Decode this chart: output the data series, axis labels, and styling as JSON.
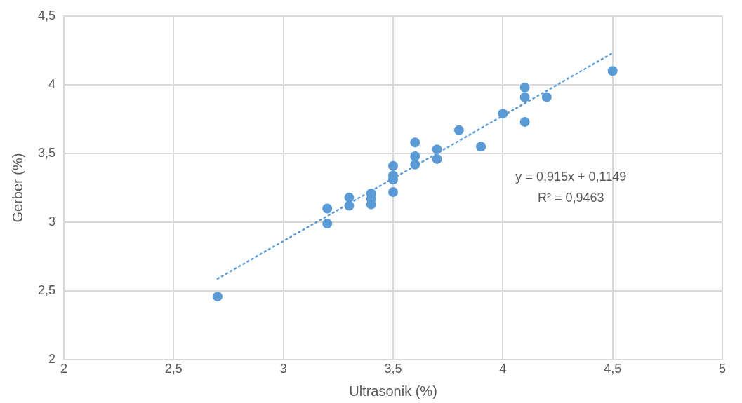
{
  "chart_data": {
    "type": "scatter",
    "xlabel": "Ultrasonik (%)",
    "ylabel": "Gerber (%)",
    "xlim": [
      2,
      5
    ],
    "xticks": [
      2,
      {
        "value": 2.5,
        "label": "2,5"
      },
      3,
      {
        "value": 3.5,
        "label": "3,5"
      },
      4,
      {
        "value": 4.5,
        "label": "4,5"
      },
      5
    ],
    "ylim": [
      2,
      4.5
    ],
    "yticks": [
      2,
      {
        "value": 2.5,
        "label": "2,5"
      },
      3,
      {
        "value": 3.5,
        "label": "3,5"
      },
      4,
      {
        "value": 4.5,
        "label": "4,5"
      }
    ],
    "grid": true,
    "legend": false,
    "marker": "circle",
    "annotations": [
      "y = 0,915x + 0,1149",
      "R² = 0,9463"
    ],
    "series": [
      {
        "color": "#5b9bd5",
        "x": [
          2.7,
          3.2,
          3.2,
          3.3,
          3.3,
          3.4,
          3.4,
          3.4,
          3.5,
          3.5,
          3.5,
          3.5,
          3.6,
          3.6,
          3.6,
          3.7,
          3.7,
          3.8,
          3.9,
          4.0,
          4.1,
          4.1,
          4.1,
          4.2,
          4.5
        ],
        "values": [
          2.46,
          3.1,
          2.99,
          3.18,
          3.12,
          3.21,
          3.17,
          3.13,
          3.41,
          3.34,
          3.31,
          3.22,
          3.58,
          3.48,
          3.42,
          3.53,
          3.46,
          3.67,
          3.55,
          3.79,
          3.98,
          3.91,
          3.73,
          3.91,
          4.1
        ]
      },
      {
        "type": "line",
        "color": "#5b9bd5",
        "line_style": "dotted",
        "marker": "none",
        "x": [
          2.7,
          4.5
        ],
        "values": [
          2.59,
          4.23
        ]
      }
    ]
  }
}
